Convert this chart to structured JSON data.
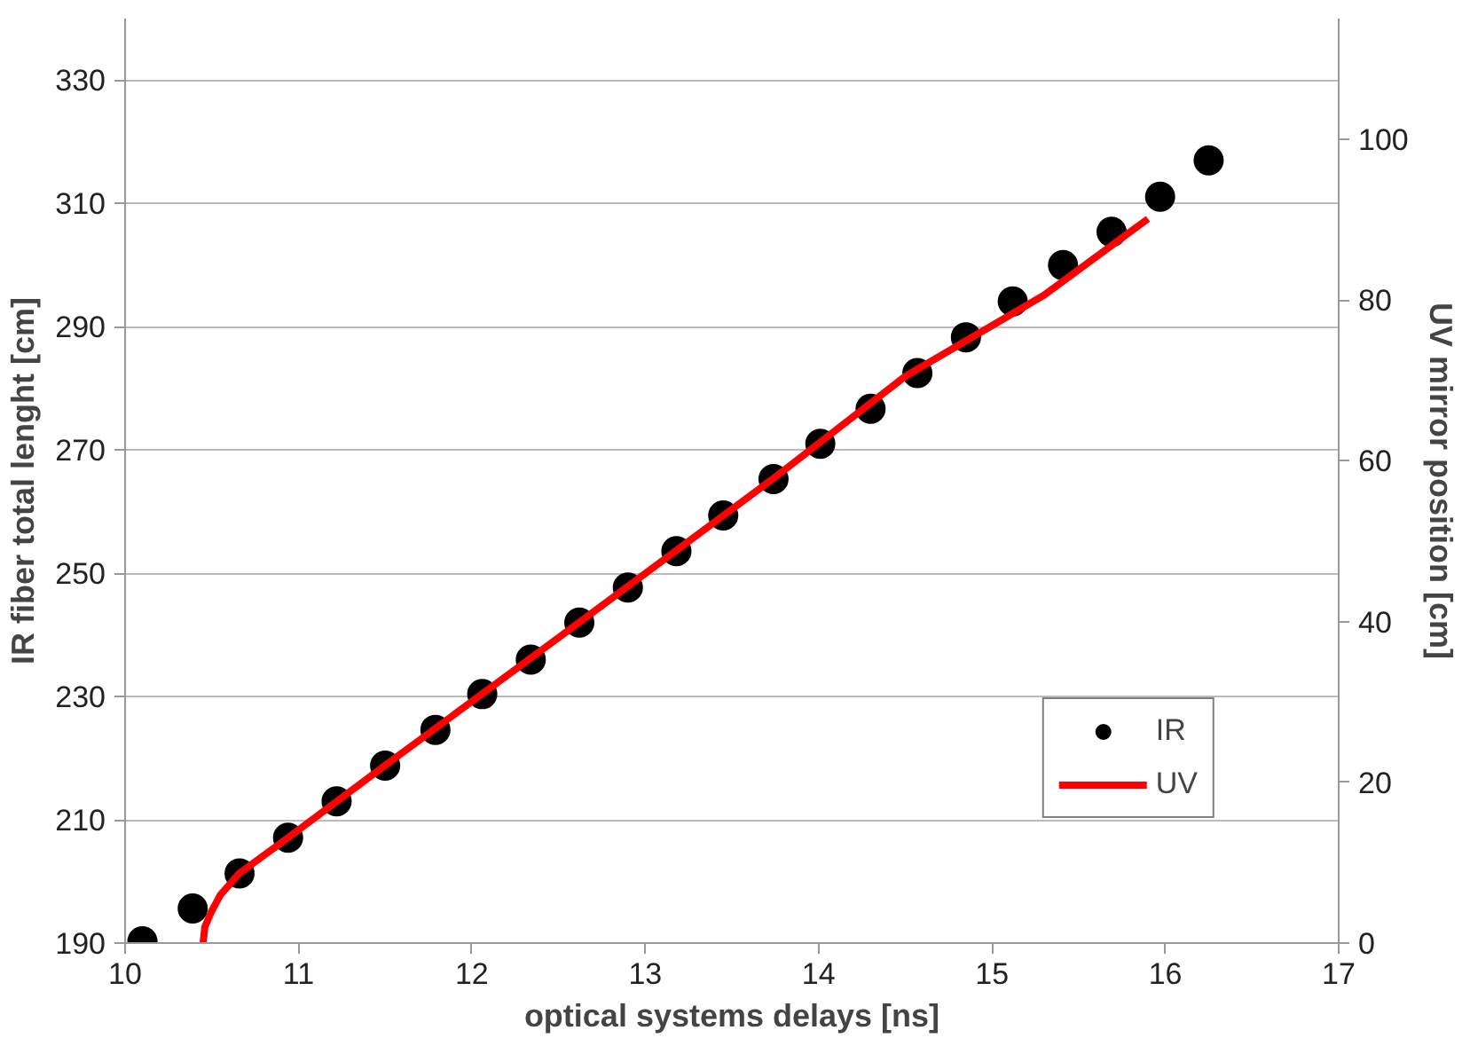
{
  "chart_data": {
    "type": "scatter",
    "xlabel": "optical systems delays [ns]",
    "ylabel": "IR fiber total lenght [cm]",
    "y2label": "UV mirror position [cm]",
    "xlim": [
      10,
      17
    ],
    "xticks": [
      10,
      11,
      12,
      13,
      14,
      15,
      16,
      17
    ],
    "ylim": [
      190,
      340
    ],
    "yticks": [
      190,
      210,
      230,
      250,
      270,
      290,
      310,
      330
    ],
    "y2lim": [
      0,
      115
    ],
    "y2ticks": [
      0,
      20,
      40,
      60,
      80,
      100
    ],
    "grid": "y",
    "legend": "bottom right",
    "series": [
      {
        "name": "IR",
        "marker": "circle",
        "color": "#000000",
        "x": [
          10.1,
          10.39,
          10.66,
          10.94,
          11.22,
          11.5,
          11.79,
          12.06,
          12.34,
          12.62,
          12.9,
          13.18,
          13.45,
          13.74,
          14.01,
          14.3,
          14.57,
          14.85,
          15.12,
          15.41,
          15.69,
          15.97,
          16.25
        ],
        "values": [
          190.3,
          195.6,
          201.3,
          207.1,
          213.0,
          218.8,
          224.6,
          230.4,
          236.0,
          242.0,
          247.7,
          253.6,
          259.4,
          265.3,
          271.0,
          276.7,
          282.5,
          288.3,
          294.1,
          300.0,
          305.4,
          311.1,
          317.0
        ]
      },
      {
        "name": "UV",
        "type": "line",
        "axis": "y2",
        "color": "#ff0000",
        "line_style": "solid",
        "x": [
          10.45,
          10.46,
          10.5,
          10.55,
          10.66,
          10.94,
          11.5,
          12.62,
          13.74,
          14.5,
          15.3,
          15.9
        ],
        "values": [
          0,
          2,
          4,
          6,
          8.7,
          13.1,
          22.1,
          39.9,
          57.8,
          70.5,
          80.6,
          90.1
        ]
      }
    ]
  }
}
